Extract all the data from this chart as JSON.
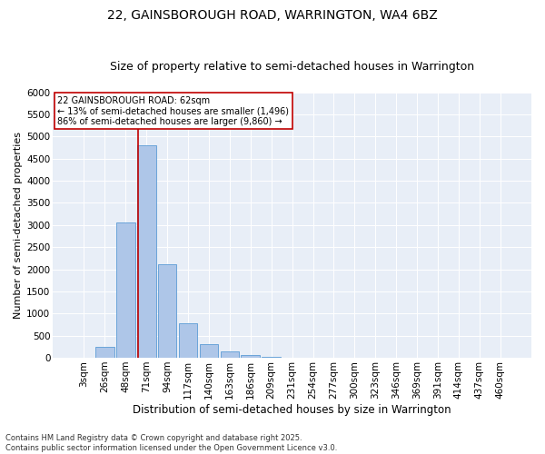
{
  "title1": "22, GAINSBOROUGH ROAD, WARRINGTON, WA4 6BZ",
  "title2": "Size of property relative to semi-detached houses in Warrington",
  "xlabel": "Distribution of semi-detached houses by size in Warrington",
  "ylabel": "Number of semi-detached properties",
  "bin_labels": [
    "3sqm",
    "26sqm",
    "48sqm",
    "71sqm",
    "94sqm",
    "117sqm",
    "140sqm",
    "163sqm",
    "186sqm",
    "209sqm",
    "231sqm",
    "254sqm",
    "277sqm",
    "300sqm",
    "323sqm",
    "346sqm",
    "369sqm",
    "391sqm",
    "414sqm",
    "437sqm",
    "460sqm"
  ],
  "bar_heights": [
    0,
    240,
    3050,
    4800,
    2120,
    780,
    310,
    140,
    70,
    30,
    10,
    5,
    5,
    5,
    0,
    0,
    0,
    0,
    0,
    0,
    0
  ],
  "bar_color": "#aec6e8",
  "bar_edge_color": "#5b9bd5",
  "vline_x_data": 2.62,
  "vline_color": "#c00000",
  "annotation_text": "22 GAINSBOROUGH ROAD: 62sqm\n← 13% of semi-detached houses are smaller (1,496)\n86% of semi-detached houses are larger (9,860) →",
  "ylim": [
    0,
    6000
  ],
  "yticks": [
    0,
    500,
    1000,
    1500,
    2000,
    2500,
    3000,
    3500,
    4000,
    4500,
    5000,
    5500,
    6000
  ],
  "bg_color": "#e8eef7",
  "footer": "Contains HM Land Registry data © Crown copyright and database right 2025.\nContains public sector information licensed under the Open Government Licence v3.0.",
  "title1_fontsize": 10,
  "title2_fontsize": 9,
  "xlabel_fontsize": 8.5,
  "ylabel_fontsize": 8,
  "tick_fontsize": 7.5,
  "annot_fontsize": 7,
  "footer_fontsize": 6
}
